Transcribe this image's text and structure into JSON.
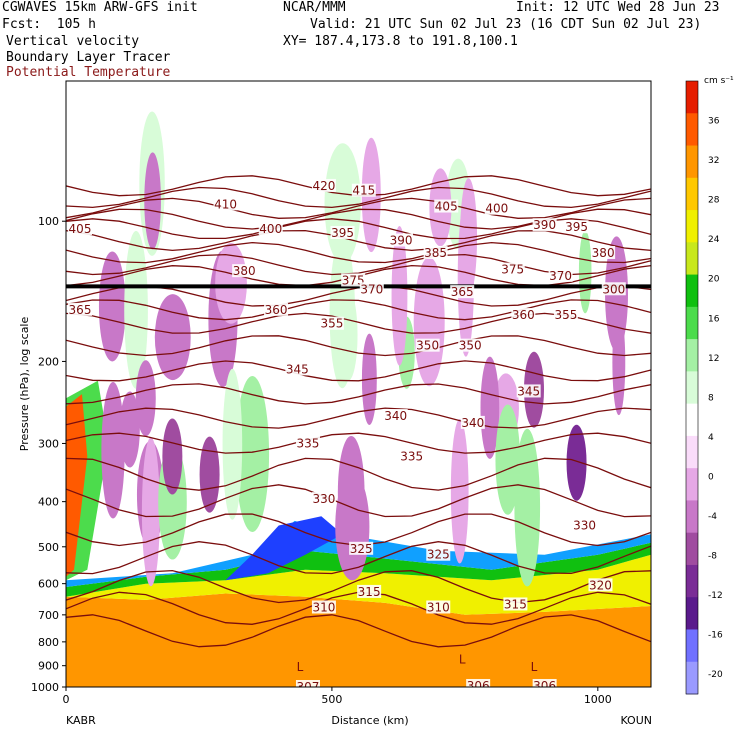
{
  "header": {
    "model": "CGWAVES 15km ARW-GFS init",
    "org": "NCAR/MMM",
    "init": "Init: 12 UTC Wed 28 Jun 23",
    "fcst": "Fcst:  105 h",
    "valid": "Valid: 21 UTC Sun 02 Jul 23 (16 CDT Sun 02 Jul 23)",
    "field1": "Vertical velocity",
    "field2": "Boundary Layer Tracer",
    "field3": "Potential Temperature",
    "xy": "XY= 187.4,173.8 to 191.8,100.1"
  },
  "colors": {
    "theta": "#7a0d0d",
    "pos": [
      "#ffffff",
      "#d8fcd8",
      "#a4f0a4",
      "#4cdc4c",
      "#10c010",
      "#c8e81c",
      "#f0f000",
      "#ffc800",
      "#ff9600",
      "#ff5a00",
      "#e61e00"
    ],
    "neg": [
      "#fadcfa",
      "#e6a8e6",
      "#c878c8",
      "#a04ca0",
      "#7a2c96",
      "#5a1a8c",
      "#7070ff",
      "#9a9aff"
    ]
  },
  "chart_data": {
    "type": "heatmap",
    "xlabel": "Distance (km)",
    "ylabel": "Pressure (hPa), log scale",
    "xlim": [
      0,
      1100
    ],
    "ylim": [
      1000,
      50
    ],
    "y_scale": "log",
    "x_ticks": [
      0,
      500,
      1000
    ],
    "y_ticks": [
      100,
      200,
      300,
      400,
      500,
      600,
      700,
      800,
      900,
      1000
    ],
    "x_endpoints": [
      "KABR",
      "KOUN"
    ],
    "colorbar": {
      "unit": "cm s⁻¹",
      "ticks": [
        36,
        32,
        28,
        24,
        20,
        16,
        12,
        8,
        4,
        0,
        -4,
        -8,
        -12,
        -16,
        -20
      ]
    },
    "theta_labels": [
      {
        "text": "420",
        "x": 485,
        "p": 84
      },
      {
        "text": "415",
        "x": 560,
        "p": 86
      },
      {
        "text": "410",
        "x": 300,
        "p": 92
      },
      {
        "text": "405",
        "x": 0,
        "p": 104
      },
      {
        "text": "405",
        "x": 715,
        "p": 93
      },
      {
        "text": "400",
        "x": 385,
        "p": 104
      },
      {
        "text": "400",
        "x": 810,
        "p": 94
      },
      {
        "text": "395",
        "x": 520,
        "p": 106
      },
      {
        "text": "395",
        "x": 960,
        "p": 103
      },
      {
        "text": "390",
        "x": 630,
        "p": 110
      },
      {
        "text": "390",
        "x": 900,
        "p": 102
      },
      {
        "text": "385",
        "x": 695,
        "p": 117
      },
      {
        "text": "380",
        "x": 335,
        "p": 128
      },
      {
        "text": "380",
        "x": 1010,
        "p": 117
      },
      {
        "text": "375",
        "x": 840,
        "p": 127
      },
      {
        "text": "375",
        "x": 540,
        "p": 134
      },
      {
        "text": "370",
        "x": 575,
        "p": 140
      },
      {
        "text": "370",
        "x": 930,
        "p": 131
      },
      {
        "text": "365",
        "x": 25,
        "p": 155
      },
      {
        "text": "365",
        "x": 745,
        "p": 142
      },
      {
        "text": "360",
        "x": 395,
        "p": 155
      },
      {
        "text": "360",
        "x": 860,
        "p": 159
      },
      {
        "text": "355",
        "x": 500,
        "p": 166
      },
      {
        "text": "355",
        "x": 940,
        "p": 159
      },
      {
        "text": "350",
        "x": 680,
        "p": 185
      },
      {
        "text": "350",
        "x": 760,
        "p": 185
      },
      {
        "text": "345",
        "x": 435,
        "p": 208
      },
      {
        "text": "345",
        "x": 870,
        "p": 232
      },
      {
        "text": "340",
        "x": 620,
        "p": 262
      },
      {
        "text": "340",
        "x": 765,
        "p": 271
      },
      {
        "text": "335",
        "x": 455,
        "p": 300
      },
      {
        "text": "335",
        "x": 650,
        "p": 320
      },
      {
        "text": "330",
        "x": 485,
        "p": 395
      },
      {
        "text": "330",
        "x": 975,
        "p": 450
      },
      {
        "text": "325",
        "x": 555,
        "p": 505
      },
      {
        "text": "325",
        "x": 700,
        "p": 520
      },
      {
        "text": "320",
        "x": 1005,
        "p": 605
      },
      {
        "text": "315",
        "x": 570,
        "p": 625
      },
      {
        "text": "315",
        "x": 845,
        "p": 665
      },
      {
        "text": "310",
        "x": 485,
        "p": 675
      },
      {
        "text": "310",
        "x": 700,
        "p": 675
      },
      {
        "text": "307",
        "x": 455,
        "p": 1000
      },
      {
        "text": "306",
        "x": 775,
        "p": 995
      },
      {
        "text": "306",
        "x": 900,
        "p": 995
      },
      {
        "text": "300",
        "x": 1030,
        "p": 140
      }
    ],
    "low_markers": [
      {
        "text": "L",
        "x": 440,
        "p": 925
      },
      {
        "text": "L",
        "x": 745,
        "p": 890
      },
      {
        "text": "L",
        "x": 880,
        "p": 925
      }
    ],
    "tropopause_p": 138
  }
}
